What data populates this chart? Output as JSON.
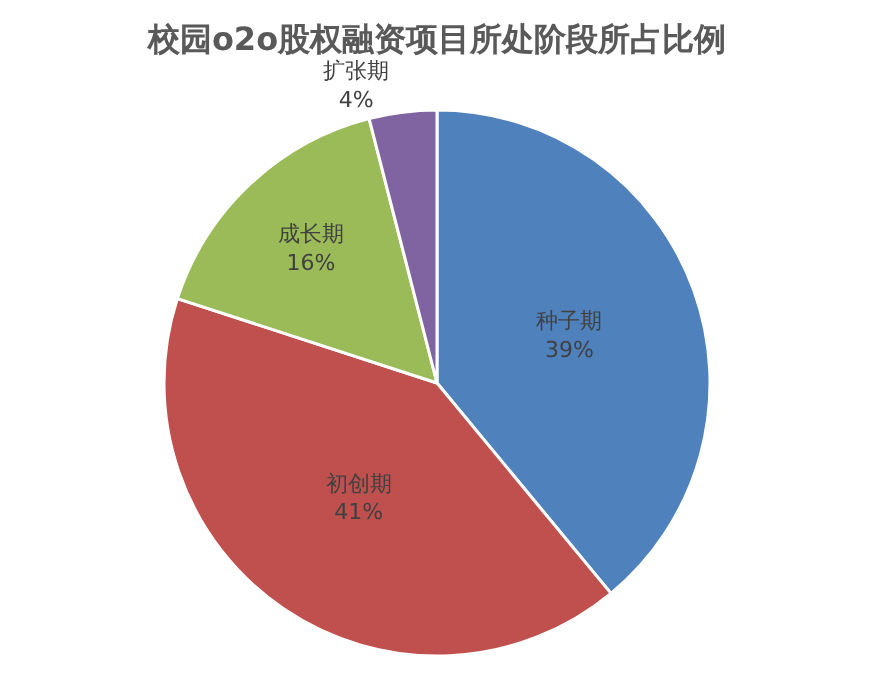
{
  "chart_data": {
    "type": "pie",
    "title": "校园o2o股权融资项目所处阶段所占比例",
    "categories": [
      "种子期",
      "初创期",
      "成长期",
      "扩张期"
    ],
    "values": [
      39,
      41,
      16,
      4
    ],
    "value_labels": [
      "39%",
      "41%",
      "16%",
      "4%"
    ],
    "colors": [
      "#4f81bd",
      "#c0504d",
      "#9bbb59",
      "#8064a2"
    ],
    "legend": false
  }
}
